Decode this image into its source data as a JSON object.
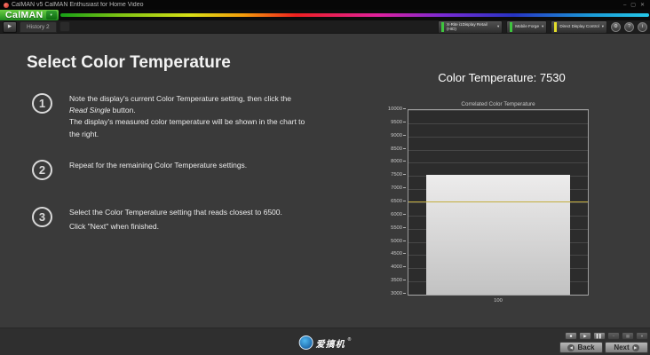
{
  "window": {
    "title": "CalMAN v5 CalMAN Enthusiast for Home Video",
    "minimize_glyph": "–",
    "maximize_glyph": "▢",
    "close_glyph": "✕"
  },
  "brand": {
    "name": "CalMAN",
    "dropdown_glyph": "▾"
  },
  "tabs": {
    "nav_glyph": "▶",
    "active_tab": "History 2"
  },
  "toolbar": {
    "meter": {
      "label": "X-Rite i1Display Retail (HID)",
      "accent": "#3ec43e",
      "arrow": "▾"
    },
    "source": {
      "label": "Mobile Forge",
      "accent": "#3ec43e",
      "arrow": "▾"
    },
    "device": {
      "label": "Direct Display Control",
      "accent": "#e3dd2b",
      "arrow": "▾"
    },
    "round_buttons": [
      {
        "name": "settings",
        "glyph": "⚙"
      },
      {
        "name": "help",
        "glyph": "?"
      },
      {
        "name": "info",
        "glyph": "i"
      }
    ]
  },
  "content": {
    "heading": "Select Color Temperature",
    "steps": [
      {
        "num": "1",
        "line1_prefix": "Note the display's current Color Temperature setting, then click the ",
        "emphasis": "Read Single",
        "line1_suffix": " button.",
        "line2": "The display's measured color temperature will be shown in the chart to the right."
      },
      {
        "num": "2",
        "line1": "Repeat for the remaining Color Temperature settings."
      },
      {
        "num": "3",
        "line1": "Select the Color Temperature setting that reads closest to 6500.",
        "line2": "Click \"Next\" when finished."
      }
    ]
  },
  "chart": {
    "header": "Color Temperature: 7530"
  },
  "chart_data": {
    "type": "bar",
    "title": "Correlated Color Temperature",
    "categories": [
      "100"
    ],
    "values": [
      7530
    ],
    "reference_line": 6500,
    "ylim": [
      3000,
      10000
    ],
    "y_tick_step": 500,
    "bar_color": "#d6d6d6",
    "reference_color": "#c3ae3e",
    "grid": true,
    "legend": false
  },
  "footer": {
    "watermark_text": "爱搞机",
    "watermark_reg": "®",
    "transport": [
      {
        "name": "stop",
        "glyph": "■",
        "dim": false
      },
      {
        "name": "play",
        "glyph": "▶",
        "dim": false
      },
      {
        "name": "pause",
        "glyph": "▌▌",
        "dim": false
      },
      {
        "name": "record",
        "glyph": "−",
        "dim": true
      },
      {
        "name": "pattern-window",
        "glyph": "▦",
        "dim": true
      },
      {
        "name": "target",
        "glyph": "●",
        "dim": true
      }
    ],
    "back_label": "Back",
    "next_label": "Next",
    "back_glyph": "◀",
    "next_glyph": "▶"
  }
}
